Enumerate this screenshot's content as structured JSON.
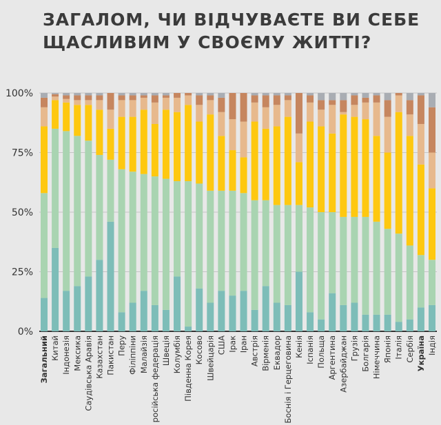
{
  "chart_data": {
    "type": "bar",
    "stacked": true,
    "orientation": "vertical",
    "title_lines": [
      "ЗАГАЛОМ, ЧИ ВІДЧУВАЄТЕ ВИ СЕБЕ",
      "ЩАСЛИВИМ У СВОЄМУ ЖИТТІ?"
    ],
    "xlabel": "",
    "ylabel": "",
    "ylim": [
      0,
      100
    ],
    "yticks": [
      "0%",
      "25%",
      "50%",
      "75%",
      "100%"
    ],
    "grid": true,
    "legend": "none",
    "bold_categories": [
      "Загальний",
      "Україна"
    ],
    "categories": [
      "Загальний",
      "Китай",
      "Індонезія",
      "Мексика",
      "Саудівська Аравія",
      "Казахстан",
      "Пакистан",
      "Перу",
      "Філіппіни",
      "Малайзія",
      "російська федерація",
      "Швеція",
      "Колумбія",
      "Південна Корея",
      "Косово",
      "Швейцарія",
      "США",
      "Ірак",
      "Іран",
      "Австрія",
      "Вірменія",
      "Еквадор",
      "Боснія і Герцеговина",
      "Кенія",
      "Іспанія",
      "Польща",
      "Аргентина",
      "Азербайджан",
      "Грузія",
      "Болгарія",
      "Німеччина",
      "Японія",
      "Італія",
      "Сербія",
      "Україна",
      "Індія"
    ],
    "series": [
      {
        "color": "#7dbdb8",
        "values": [
          14,
          35,
          17,
          19,
          23,
          30,
          46,
          8,
          12,
          17,
          11,
          9,
          23,
          2,
          18,
          12,
          17,
          15,
          17,
          9,
          19,
          12,
          11,
          25,
          8,
          5,
          16,
          11,
          12,
          7,
          7,
          7,
          4,
          5,
          10,
          11
        ]
      },
      {
        "color": "#a9d4b1",
        "values": [
          44,
          50,
          67,
          63,
          57,
          44,
          26,
          60,
          55,
          49,
          54,
          55,
          40,
          61,
          44,
          47,
          42,
          44,
          41,
          46,
          36,
          41,
          42,
          28,
          44,
          45,
          34,
          37,
          36,
          41,
          39,
          36,
          37,
          31,
          22,
          19
        ]
      },
      {
        "color": "#fec810",
        "values": [
          28,
          12,
          12,
          13,
          15,
          19,
          13,
          22,
          23,
          27,
          22,
          29,
          29,
          32,
          26,
          32,
          23,
          17,
          15,
          33,
          30,
          33,
          37,
          18,
          36,
          36,
          33,
          43,
          42,
          41,
          36,
          32,
          51,
          46,
          38,
          30
        ]
      },
      {
        "color": "#e7b98d",
        "values": [
          8,
          1.5,
          1.5,
          2,
          2,
          4,
          8,
          7,
          7,
          5,
          9,
          5,
          6,
          4,
          7,
          6,
          10,
          13,
          15,
          8,
          9,
          9,
          7,
          12,
          8,
          7,
          12,
          1,
          5,
          7,
          14,
          15,
          7,
          9,
          17,
          15
        ]
      },
      {
        "color": "#c6865f",
        "values": [
          4,
          1,
          1.5,
          2,
          2,
          2,
          7,
          2,
          2,
          1,
          3,
          1,
          2,
          1,
          4,
          2,
          6,
          11,
          12,
          3,
          5,
          4,
          2,
          17,
          3,
          4,
          2,
          5,
          4,
          2,
          3,
          7,
          1,
          6,
          12,
          19
        ]
      },
      {
        "color": "#a9adb3",
        "values": [
          2,
          0.5,
          1,
          1,
          1,
          1,
          0,
          1,
          1,
          1,
          1,
          1,
          0,
          0,
          1,
          1,
          2,
          0,
          0,
          1,
          1,
          1,
          1,
          0,
          1,
          3,
          3,
          3,
          1,
          2,
          1,
          3,
          0,
          3,
          1,
          6
        ]
      }
    ]
  }
}
